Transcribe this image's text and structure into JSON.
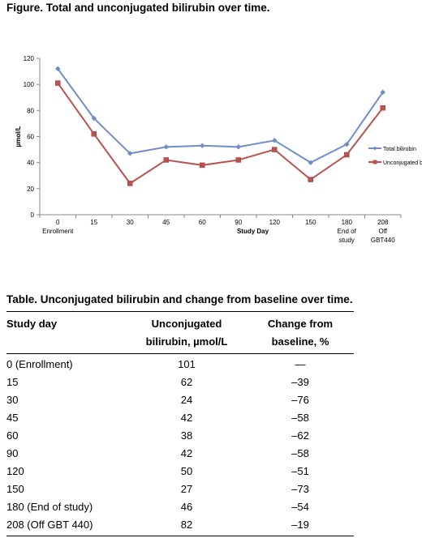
{
  "figure": {
    "title": "Figure. Total and unconjugated bilirubin over time."
  },
  "chart_data": {
    "type": "line",
    "title": "",
    "xlabel": "Study Day",
    "ylabel": "µmol/L",
    "ylim": [
      0,
      120
    ],
    "y_ticks": [
      "0",
      "20",
      "40",
      "60",
      "80",
      "100",
      "120"
    ],
    "categories": [
      [
        "0",
        "Enrollment"
      ],
      [
        "15"
      ],
      [
        "30"
      ],
      [
        "45"
      ],
      [
        "60"
      ],
      [
        "90"
      ],
      [
        "120"
      ],
      [
        "150"
      ],
      [
        "180",
        "End of",
        "study"
      ],
      [
        "208",
        "Off",
        "GBT440"
      ]
    ],
    "x": [
      0,
      15,
      30,
      45,
      60,
      90,
      120,
      150,
      180,
      208
    ],
    "series": [
      {
        "name": "Total bilirubin",
        "color": "#6f8fc4",
        "marker": "diamond",
        "values": [
          112,
          74,
          47,
          52,
          53,
          52,
          57,
          40,
          54,
          94
        ]
      },
      {
        "name": "Unconjugated bil",
        "color": "#b95350",
        "marker": "square",
        "values": [
          101,
          62,
          24,
          42,
          38,
          42,
          50,
          27,
          46,
          82
        ]
      }
    ],
    "grid": false,
    "legend_placement": "right"
  },
  "table": {
    "title": "Table. Unconjugated bilirubin and change from baseline over time.",
    "headers": [
      [
        "Study day",
        ""
      ],
      [
        "Unconjugated",
        "bilirubin, µmol/L"
      ],
      [
        "Change from",
        "baseline, %"
      ]
    ],
    "rows": [
      [
        "0 (Enrollment)",
        "101",
        "—"
      ],
      [
        "15",
        "62",
        "–39"
      ],
      [
        "30",
        "24",
        "–76"
      ],
      [
        "45",
        "42",
        "–58"
      ],
      [
        "60",
        "38",
        "–62"
      ],
      [
        "90",
        "42",
        "–58"
      ],
      [
        "120",
        "50",
        "–51"
      ],
      [
        "150",
        "27",
        "–73"
      ],
      [
        "180 (End of study)",
        "46",
        "–54"
      ],
      [
        "208 (Off GBT 440)",
        "82",
        "–19"
      ]
    ]
  }
}
